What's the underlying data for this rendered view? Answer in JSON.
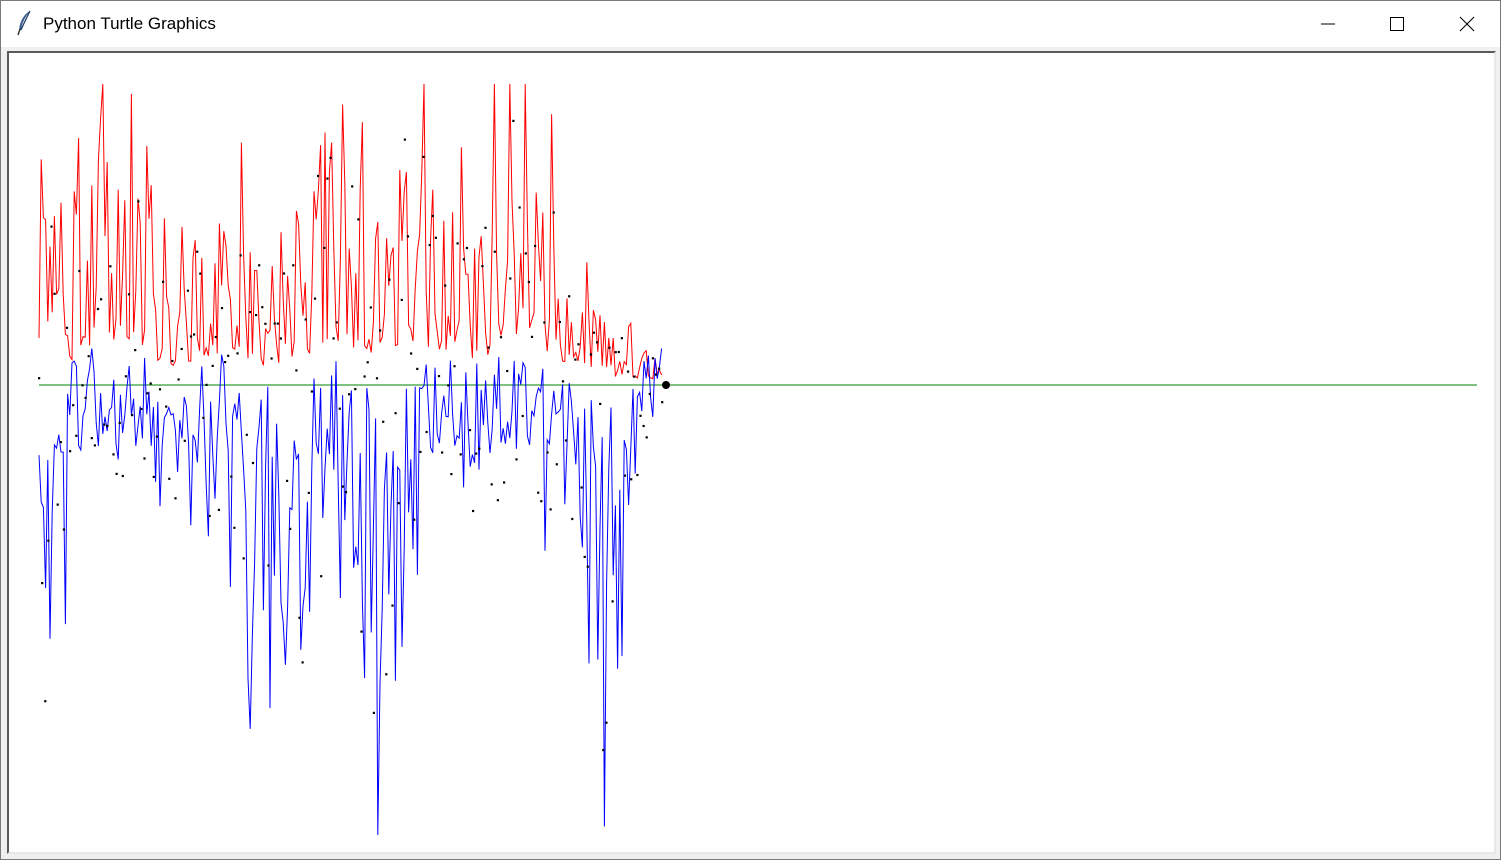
{
  "window": {
    "title": "Python Turtle Graphics",
    "icon": "feather-icon",
    "controls": [
      "minimize-icon",
      "maximize-icon",
      "close-icon"
    ]
  },
  "canvas": {
    "background": "#ffffff",
    "colors": {
      "upper_line": "#ff0000",
      "lower_line": "#0000ff",
      "baseline": "#008000",
      "samples": "#000000"
    },
    "turtle": "dot"
  }
}
